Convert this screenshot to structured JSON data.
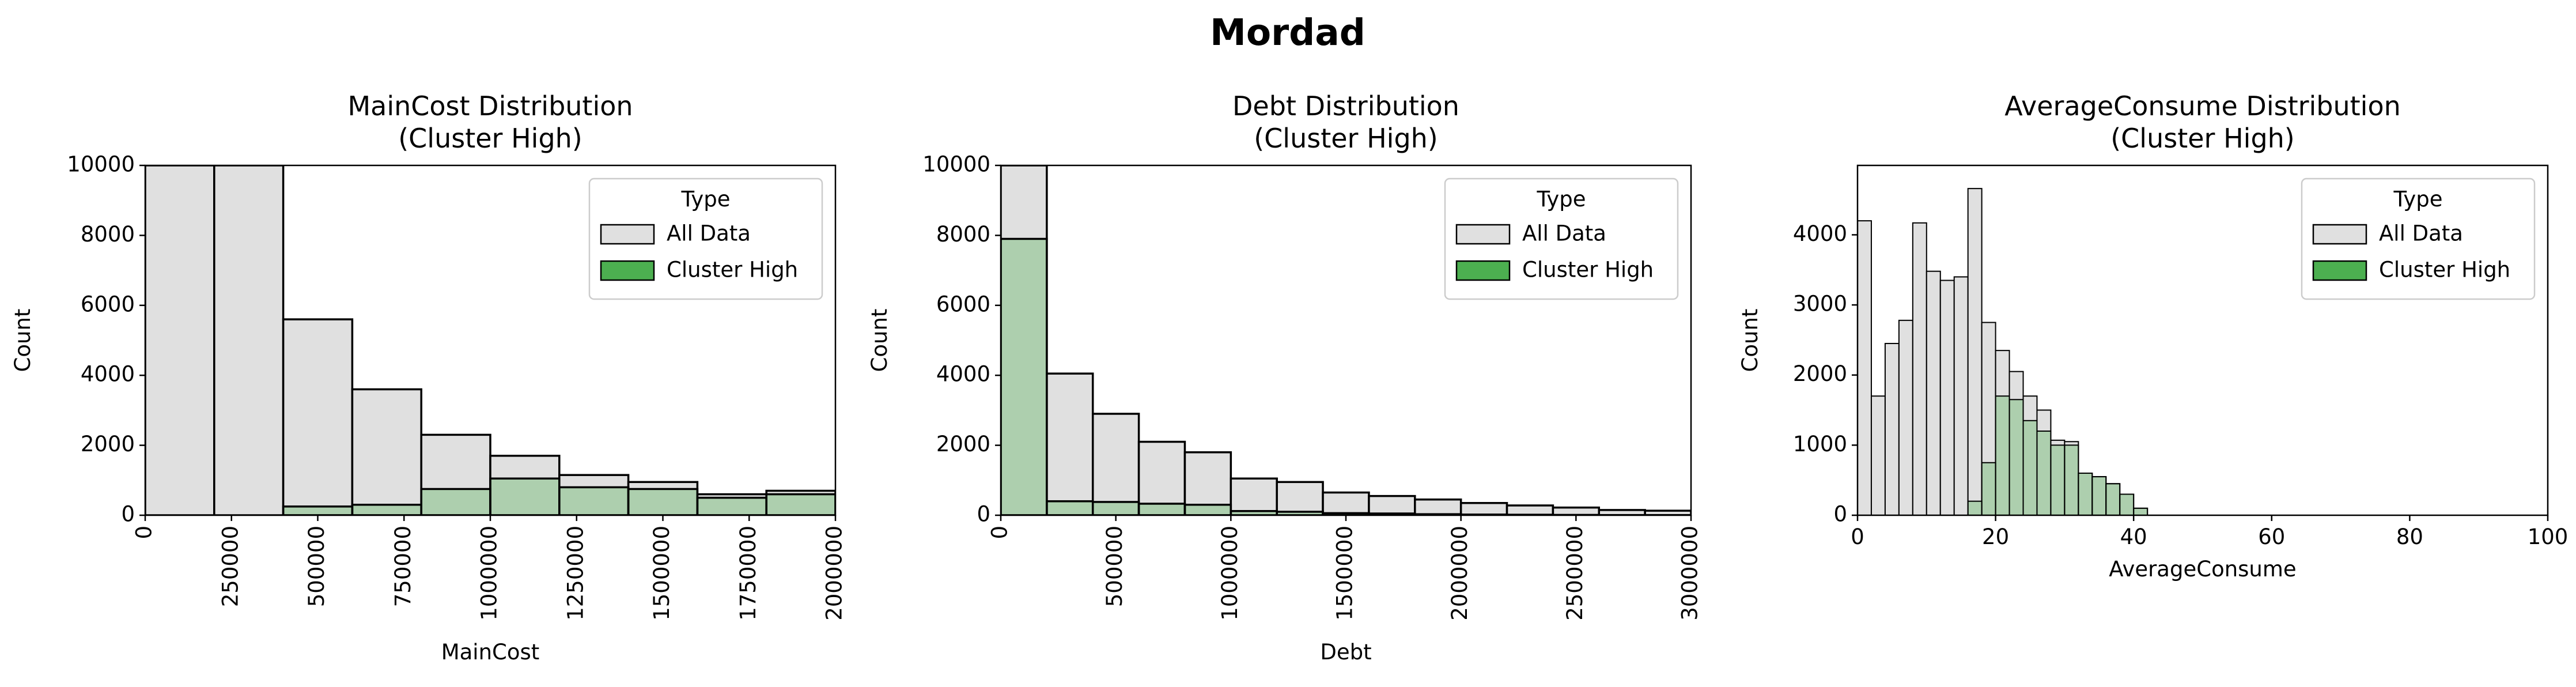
{
  "title": "Mordad",
  "chart_data": [
    {
      "type": "histogram",
      "title": [
        "MainCost Distribution",
        "(Cluster High)"
      ],
      "xlabel": "MainCost",
      "ylabel": "Count",
      "bins": [
        0,
        200000,
        400000,
        600000,
        800000,
        1000000,
        1200000,
        1400000,
        1600000,
        1800000,
        2000000
      ],
      "series": [
        {
          "name": "All Data",
          "color": "#e0e0e0",
          "values": [
            10000,
            10000,
            5600,
            3600,
            2300,
            1700,
            1150,
            950,
            600,
            700
          ]
        },
        {
          "name": "Cluster High",
          "color": "#4caf50",
          "values": [
            0,
            0,
            250,
            300,
            750,
            1050,
            800,
            750,
            500,
            600
          ]
        }
      ],
      "xlim": [
        0,
        2000000
      ],
      "ylim": [
        0,
        10000
      ],
      "xticks": [
        0,
        250000,
        500000,
        750000,
        1000000,
        1250000,
        1500000,
        1750000,
        2000000
      ],
      "yticks": [
        0,
        2000,
        4000,
        6000,
        8000,
        10000
      ],
      "xtick_rotation": 90,
      "legend_title": "Type",
      "legend": "upper right"
    },
    {
      "type": "histogram",
      "title": [
        "Debt Distribution",
        "(Cluster High)"
      ],
      "xlabel": "Debt",
      "ylabel": "Count",
      "bins": [
        0,
        200000,
        400000,
        600000,
        800000,
        1000000,
        1200000,
        1400000,
        1600000,
        1800000,
        2000000,
        2200000,
        2400000,
        2600000,
        2800000,
        3000000
      ],
      "series": [
        {
          "name": "All Data",
          "color": "#e0e0e0",
          "values": [
            10000,
            4050,
            2900,
            2100,
            1800,
            1050,
            950,
            650,
            550,
            450,
            350,
            280,
            220,
            150,
            130
          ]
        },
        {
          "name": "Cluster High",
          "color": "#4caf50",
          "values": [
            7900,
            400,
            380,
            330,
            300,
            120,
            100,
            60,
            50,
            30,
            20,
            15,
            10,
            5,
            5
          ]
        }
      ],
      "xlim": [
        0,
        3000000
      ],
      "ylim": [
        0,
        10000
      ],
      "xticks": [
        0,
        500000,
        1000000,
        1500000,
        2000000,
        2500000,
        3000000
      ],
      "yticks": [
        0,
        2000,
        4000,
        6000,
        8000,
        10000
      ],
      "xtick_rotation": 90,
      "legend_title": "Type",
      "legend": "upper right"
    },
    {
      "type": "histogram",
      "title": [
        "AverageConsume Distribution",
        "(Cluster High)"
      ],
      "xlabel": "AverageConsume",
      "ylabel": "Count",
      "bins": [
        0,
        2,
        4,
        6,
        8,
        10,
        12,
        14,
        16,
        18,
        20,
        22,
        24,
        26,
        28,
        30,
        32,
        34,
        36,
        38,
        40,
        42
      ],
      "series": [
        {
          "name": "All Data",
          "color": "#e0e0e0",
          "values": [
            4200,
            1700,
            2450,
            2780,
            4170,
            3480,
            3350,
            3400,
            4660,
            2750,
            2350,
            2050,
            1700,
            1500,
            1070,
            1050,
            600,
            550,
            450,
            300,
            100
          ]
        },
        {
          "name": "Cluster High",
          "color": "#4caf50",
          "values": [
            0,
            0,
            0,
            0,
            0,
            0,
            0,
            0,
            200,
            750,
            1700,
            1650,
            1350,
            1200,
            1000,
            1000,
            600,
            550,
            450,
            300,
            100
          ]
        }
      ],
      "xlim": [
        0,
        100
      ],
      "ylim": [
        0,
        4990
      ],
      "xticks": [
        0,
        20,
        40,
        60,
        80,
        100
      ],
      "yticks": [
        0,
        1000,
        2000,
        3000,
        4000
      ],
      "xtick_rotation": 0,
      "legend_title": "Type",
      "legend": "upper right"
    }
  ]
}
